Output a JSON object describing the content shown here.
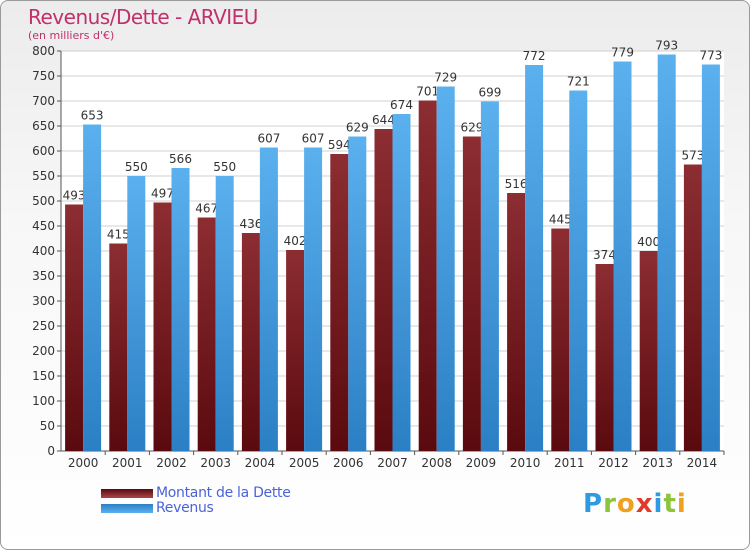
{
  "title": "Revenus/Dette - ARVIEU",
  "subtitle": "(en milliers d'€)",
  "colors": {
    "dette": "#7a1f25",
    "revenus": "#4aa3e8",
    "title": "#c0306a",
    "legend_text": "#4b63d8"
  },
  "legend": [
    {
      "label": "Montant de la Dette",
      "color": "dette"
    },
    {
      "label": "Revenus",
      "color": "revenus"
    }
  ],
  "logo": {
    "text": "Proxiti",
    "letters": [
      "P",
      "r",
      "o",
      "x",
      "i",
      "t",
      "i"
    ]
  },
  "chart_data": {
    "type": "bar",
    "title": "Revenus/Dette - ARVIEU",
    "subtitle": "(en milliers d'€)",
    "categories": [
      "2000",
      "2001",
      "2002",
      "2003",
      "2004",
      "2005",
      "2006",
      "2007",
      "2008",
      "2009",
      "2010",
      "2011",
      "2012",
      "2013",
      "2014"
    ],
    "series": [
      {
        "name": "Montant de la Dette",
        "values": [
          493,
          415,
          497,
          467,
          436,
          402,
          594,
          644,
          701,
          629,
          516,
          445,
          374,
          400,
          573
        ]
      },
      {
        "name": "Revenus",
        "values": [
          653,
          550,
          566,
          550,
          607,
          607,
          629,
          674,
          729,
          699,
          772,
          721,
          779,
          793,
          773
        ]
      }
    ],
    "ylim": [
      0,
      800
    ],
    "yticks": [
      0,
      50,
      100,
      150,
      200,
      250,
      300,
      350,
      400,
      450,
      500,
      550,
      600,
      650,
      700,
      750,
      800
    ],
    "grid": true,
    "legend_position": "bottom-left"
  }
}
